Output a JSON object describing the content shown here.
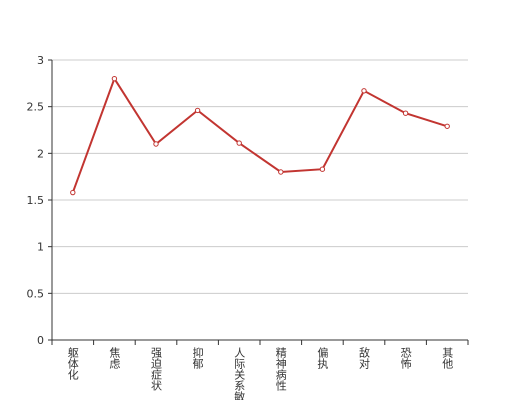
{
  "chart_data": {
    "type": "line",
    "categories": [
      "躯体化",
      "焦虑",
      "强迫症状",
      "抑郁",
      "人际关系敏感",
      "精神病性",
      "偏执",
      "敌对",
      "恐怖",
      "其他"
    ],
    "values": [
      1.58,
      2.8,
      2.1,
      2.46,
      2.11,
      1.8,
      1.83,
      2.67,
      2.43,
      2.29
    ],
    "color": "#c23531",
    "ylim": [
      0,
      3
    ],
    "yticks": [
      0,
      0.5,
      1,
      1.5,
      2,
      2.5,
      3
    ],
    "grid": true
  }
}
